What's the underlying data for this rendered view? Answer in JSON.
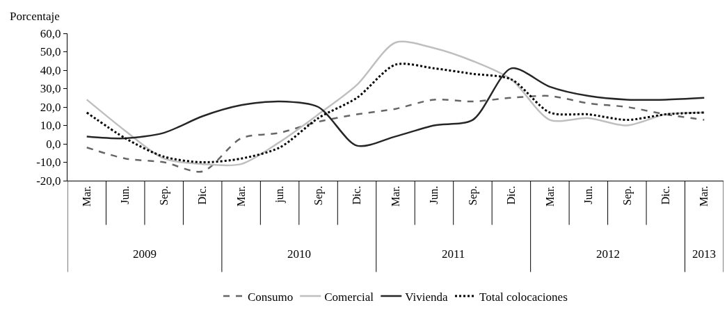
{
  "chart_data": {
    "type": "line",
    "ylabel": "Porcentaje",
    "categories": [
      "Mar.",
      "Jun.",
      "Sep.",
      "Dic.",
      "Mar.",
      "jun.",
      "Sep.",
      "Dic.",
      "Mar.",
      "Jun.",
      "Sep.",
      "Dic.",
      "Mar.",
      "Jun.",
      "Sep.",
      "Dic.",
      "Mar."
    ],
    "annotations": [
      "2009",
      "2010",
      "2011",
      "2012",
      "2013"
    ],
    "series": [
      {
        "name": "Consumo",
        "color": "#666666",
        "line_style": "dashed",
        "values": [
          -2,
          -8,
          -10,
          -15,
          3,
          6,
          12,
          16,
          19,
          24,
          23,
          25,
          26,
          22,
          20,
          16,
          13
        ]
      },
      {
        "name": "Comercial",
        "color": "#bfbfbf",
        "line_style": "solid",
        "values": [
          24,
          7,
          -8,
          -11,
          -11,
          1,
          16,
          32,
          55,
          52,
          45,
          35,
          13,
          14,
          10,
          16,
          17
        ]
      },
      {
        "name": "Vivienda",
        "color": "#262626",
        "line_style": "solid",
        "values": [
          4,
          3,
          6,
          15,
          21,
          23,
          20,
          -1,
          4,
          10,
          13,
          41,
          31,
          26,
          24,
          24,
          25
        ]
      },
      {
        "name": "Total colocaciones",
        "color": "#000000",
        "line_style": "dotted",
        "values": [
          17,
          3,
          -7,
          -10,
          -8,
          -2,
          14,
          25,
          43,
          41,
          38,
          35,
          17,
          16,
          13,
          16,
          17
        ]
      }
    ],
    "ylim": [
      -20,
      60
    ],
    "yticks": [
      {
        "value": -20,
        "label": "-20,0"
      },
      {
        "value": -10,
        "label": "-10,0"
      },
      {
        "value": 0,
        "label": "0,0"
      },
      {
        "value": 10,
        "label": "10,0"
      },
      {
        "value": 20,
        "label": "20,0"
      },
      {
        "value": 30,
        "label": "30,0"
      },
      {
        "value": 40,
        "label": "40,0"
      },
      {
        "value": 50,
        "label": "50,0"
      },
      {
        "value": 60,
        "label": "60,0"
      }
    ],
    "legend": "bottom",
    "marker": "none"
  }
}
